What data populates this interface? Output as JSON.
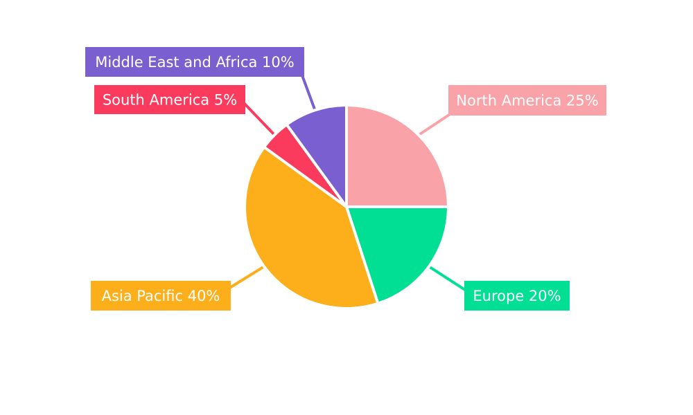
{
  "chart_data": {
    "type": "pie",
    "title": "",
    "categories": [
      "North America",
      "Europe",
      "Asia Pacific",
      "South America",
      "Middle East and Africa"
    ],
    "values": [
      25,
      20,
      40,
      5,
      10
    ],
    "slices": [
      {
        "label": "North America",
        "value": 25,
        "pct": "25%",
        "color": "#F9A2A7",
        "callout": "North America 25%"
      },
      {
        "label": "Europe",
        "value": 20,
        "pct": "20%",
        "color": "#00DF94",
        "callout": "Europe 20%"
      },
      {
        "label": "Asia Pacific",
        "value": 40,
        "pct": "40%",
        "color": "#FCAE1B",
        "callout": "Asia Pacific 40%"
      },
      {
        "label": "South America",
        "value": 5,
        "pct": "5%",
        "color": "#FA3B5D",
        "callout": "South America 5%"
      },
      {
        "label": "Middle East and Africa",
        "value": 10,
        "pct": "10%",
        "color": "#7A5FD0",
        "callout": "Middle East and Africa 10%"
      }
    ],
    "start_angle_deg": 0,
    "direction": "clockwise",
    "slice_separator_color": "#FFFFFF",
    "label_style": "colored-callout-boxes-with-leader-lines",
    "label_text_color": "#FFFFFF",
    "background_color": "#FFFFFF",
    "legend": "none"
  }
}
